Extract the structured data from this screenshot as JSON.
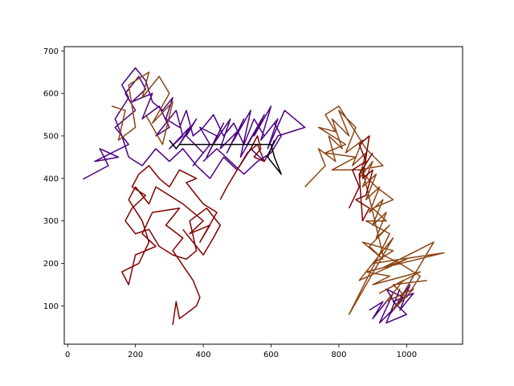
{
  "chart_data": {
    "type": "line",
    "title": "",
    "xlabel": "",
    "ylabel": "",
    "xlim": [
      -10,
      1165
    ],
    "ylim": [
      10,
      710
    ],
    "xticks": [
      0,
      200,
      400,
      600,
      800,
      1000
    ],
    "yticks": [
      100,
      200,
      300,
      400,
      500,
      600,
      700
    ],
    "grid": false,
    "legend": "none",
    "series": [
      {
        "color": "#4B0082",
        "values": [
          [
            45,
            398
          ],
          [
            120,
            430
          ],
          [
            95,
            470
          ],
          [
            150,
            450
          ],
          [
            80,
            440
          ],
          [
            180,
            480
          ],
          [
            140,
            520
          ],
          [
            200,
            560
          ],
          [
            170,
            600
          ],
          [
            210,
            640
          ],
          [
            230,
            610
          ],
          [
            190,
            580
          ],
          [
            250,
            600
          ],
          [
            220,
            540
          ],
          [
            270,
            570
          ],
          [
            300,
            520
          ],
          [
            260,
            500
          ],
          [
            320,
            560
          ],
          [
            340,
            500
          ],
          [
            300,
            470
          ],
          [
            360,
            520
          ],
          [
            330,
            480
          ],
          [
            380,
            540
          ],
          [
            350,
            500
          ],
          [
            400,
            460
          ],
          [
            370,
            430
          ],
          [
            420,
            480
          ],
          [
            390,
            520
          ],
          [
            440,
            500
          ],
          [
            410,
            450
          ],
          [
            460,
            530
          ],
          [
            430,
            480
          ],
          [
            480,
            540
          ],
          [
            450,
            470
          ],
          [
            500,
            510
          ],
          [
            470,
            460
          ],
          [
            520,
            540
          ],
          [
            490,
            490
          ],
          [
            540,
            560
          ],
          [
            510,
            450
          ],
          [
            560,
            520
          ],
          [
            530,
            480
          ],
          [
            580,
            550
          ],
          [
            550,
            500
          ],
          [
            600,
            570
          ],
          [
            570,
            490
          ],
          [
            620,
            540
          ],
          [
            590,
            470
          ],
          [
            640,
            560
          ],
          [
            700,
            520
          ],
          [
            620,
            500
          ],
          [
            580,
            440
          ],
          [
            540,
            470
          ],
          [
            500,
            420
          ],
          [
            460,
            450
          ],
          [
            420,
            400
          ],
          [
            380,
            430
          ],
          [
            340,
            470
          ],
          [
            300,
            440
          ],
          [
            260,
            470
          ],
          [
            220,
            430
          ],
          [
            180,
            450
          ],
          [
            160,
            500
          ],
          [
            140,
            540
          ],
          [
            180,
            590
          ],
          [
            160,
            620
          ],
          [
            200,
            660
          ],
          [
            230,
            630
          ],
          [
            250,
            580
          ],
          [
            280,
            560
          ],
          [
            310,
            590
          ],
          [
            290,
            540
          ],
          [
            330,
            520
          ],
          [
            350,
            560
          ],
          [
            370,
            500
          ],
          [
            400,
            520
          ],
          [
            430,
            550
          ],
          [
            460,
            500
          ],
          [
            490,
            530
          ],
          [
            520,
            480
          ],
          [
            550,
            540
          ],
          [
            580,
            500
          ],
          [
            610,
            530
          ],
          [
            630,
            500
          ],
          [
            600,
            460
          ],
          [
            560,
            440
          ],
          [
            520,
            410
          ],
          [
            480,
            440
          ],
          [
            440,
            470
          ],
          [
            400,
            440
          ]
        ]
      },
      {
        "color": "#4B0082",
        "values": [
          [
            890,
            90
          ],
          [
            930,
            110
          ],
          [
            900,
            70
          ],
          [
            960,
            130
          ],
          [
            920,
            60
          ],
          [
            970,
            100
          ],
          [
            940,
            140
          ],
          [
            990,
            120
          ],
          [
            950,
            80
          ],
          [
            1010,
            150
          ],
          [
            980,
            90
          ],
          [
            1020,
            130
          ],
          [
            960,
            110
          ],
          [
            1000,
            80
          ],
          [
            940,
            60
          ],
          [
            980,
            140
          ]
        ]
      },
      {
        "color": "#8B4513",
        "values": [
          [
            130,
            570
          ],
          [
            170,
            560
          ],
          [
            150,
            490
          ],
          [
            200,
            520
          ],
          [
            180,
            620
          ],
          [
            240,
            650
          ],
          [
            220,
            590
          ],
          [
            270,
            640
          ],
          [
            300,
            600
          ],
          [
            250,
            530
          ],
          [
            310,
            580
          ],
          [
            280,
            480
          ],
          [
            230,
            550
          ]
        ]
      },
      {
        "color": "#8B4513",
        "values": [
          [
            700,
            380
          ],
          [
            760,
            430
          ],
          [
            740,
            470
          ],
          [
            790,
            440
          ],
          [
            770,
            500
          ],
          [
            810,
            470
          ],
          [
            780,
            540
          ],
          [
            830,
            500
          ],
          [
            800,
            560
          ],
          [
            850,
            520
          ],
          [
            820,
            460
          ],
          [
            870,
            490
          ],
          [
            840,
            430
          ],
          [
            880,
            460
          ],
          [
            860,
            400
          ],
          [
            900,
            440
          ],
          [
            870,
            380
          ],
          [
            910,
            410
          ],
          [
            880,
            350
          ],
          [
            920,
            380
          ],
          [
            890,
            320
          ],
          [
            930,
            350
          ],
          [
            900,
            290
          ],
          [
            940,
            320
          ],
          [
            910,
            260
          ],
          [
            950,
            290
          ],
          [
            890,
            240
          ],
          [
            930,
            210
          ],
          [
            870,
            250
          ],
          [
            960,
            230
          ],
          [
            900,
            200
          ],
          [
            1110,
            225
          ],
          [
            880,
            180
          ],
          [
            950,
            170
          ],
          [
            900,
            150
          ],
          [
            1040,
            180
          ],
          [
            920,
            130
          ],
          [
            990,
            160
          ],
          [
            940,
            110
          ],
          [
            1020,
            140
          ],
          [
            960,
            90
          ],
          [
            1080,
            250
          ],
          [
            930,
            190
          ],
          [
            1000,
            210
          ],
          [
            860,
            160
          ],
          [
            960,
            260
          ],
          [
            830,
            80
          ],
          [
            950,
            270
          ],
          [
            880,
            300
          ],
          [
            940,
            300
          ],
          [
            900,
            330
          ],
          [
            960,
            350
          ],
          [
            910,
            380
          ],
          [
            860,
            420
          ],
          [
            930,
            430
          ],
          [
            880,
            470
          ],
          [
            840,
            520
          ],
          [
            800,
            570
          ],
          [
            760,
            550
          ],
          [
            790,
            510
          ],
          [
            740,
            520
          ],
          [
            820,
            480
          ],
          [
            760,
            460
          ],
          [
            850,
            450
          ],
          [
            780,
            420
          ],
          [
            870,
            420
          ],
          [
            930,
            220
          ],
          [
            980,
            200
          ],
          [
            1040,
            170
          ],
          [
            1000,
            120
          ],
          [
            960,
            150
          ],
          [
            1060,
            160
          ]
        ]
      },
      {
        "color": "#800000",
        "values": [
          [
            310,
            55
          ],
          [
            320,
            110
          ],
          [
            330,
            70
          ],
          [
            380,
            100
          ],
          [
            390,
            120
          ],
          [
            370,
            160
          ],
          [
            310,
            230
          ],
          [
            340,
            260
          ],
          [
            290,
            290
          ],
          [
            330,
            330
          ],
          [
            250,
            320
          ],
          [
            220,
            270
          ],
          [
            260,
            240
          ],
          [
            200,
            220
          ],
          [
            180,
            150
          ],
          [
            160,
            180
          ],
          [
            210,
            200
          ],
          [
            240,
            250
          ],
          [
            220,
            300
          ],
          [
            180,
            350
          ],
          [
            200,
            380
          ],
          [
            240,
            340
          ],
          [
            260,
            380
          ],
          [
            300,
            360
          ],
          [
            340,
            340
          ],
          [
            370,
            320
          ],
          [
            400,
            300
          ],
          [
            360,
            270
          ],
          [
            420,
            290
          ],
          [
            390,
            250
          ],
          [
            440,
            320
          ],
          [
            400,
            340
          ],
          [
            350,
            390
          ],
          [
            380,
            400
          ],
          [
            330,
            420
          ],
          [
            300,
            380
          ],
          [
            270,
            400
          ],
          [
            240,
            430
          ],
          [
            210,
            410
          ],
          [
            190,
            380
          ],
          [
            230,
            360
          ],
          [
            190,
            330
          ],
          [
            170,
            300
          ],
          [
            200,
            270
          ],
          [
            240,
            280
          ],
          [
            270,
            240
          ],
          [
            310,
            220
          ],
          [
            350,
            210
          ],
          [
            380,
            230
          ],
          [
            360,
            300
          ],
          [
            410,
            330
          ],
          [
            430,
            310
          ],
          [
            450,
            290
          ],
          [
            430,
            260
          ],
          [
            400,
            220
          ],
          [
            370,
            250
          ],
          [
            340,
            280
          ]
        ]
      },
      {
        "color": "#800000",
        "values": [
          [
            540,
            470
          ],
          [
            560,
            500
          ],
          [
            570,
            470
          ],
          [
            550,
            450
          ],
          [
            580,
            440
          ],
          [
            560,
            480
          ],
          [
            530,
            460
          ],
          [
            500,
            420
          ],
          [
            470,
            380
          ],
          [
            450,
            350
          ]
        ]
      },
      {
        "color": "#800000",
        "values": [
          [
            830,
            330
          ],
          [
            860,
            380
          ],
          [
            840,
            420
          ],
          [
            880,
            440
          ],
          [
            860,
            480
          ],
          [
            890,
            500
          ],
          [
            870,
            400
          ],
          [
            900,
            420
          ],
          [
            880,
            360
          ],
          [
            850,
            350
          ],
          [
            890,
            330
          ],
          [
            870,
            300
          ],
          [
            860,
            410
          ],
          [
            900,
            460
          ]
        ]
      },
      {
        "color": "#000000",
        "values": [
          [
            300,
            490
          ],
          [
            320,
            470
          ],
          [
            330,
            480
          ],
          [
            600,
            480
          ],
          [
            610,
            450
          ],
          [
            630,
            410
          ],
          [
            590,
            450
          ],
          [
            610,
            490
          ]
        ]
      }
    ]
  }
}
